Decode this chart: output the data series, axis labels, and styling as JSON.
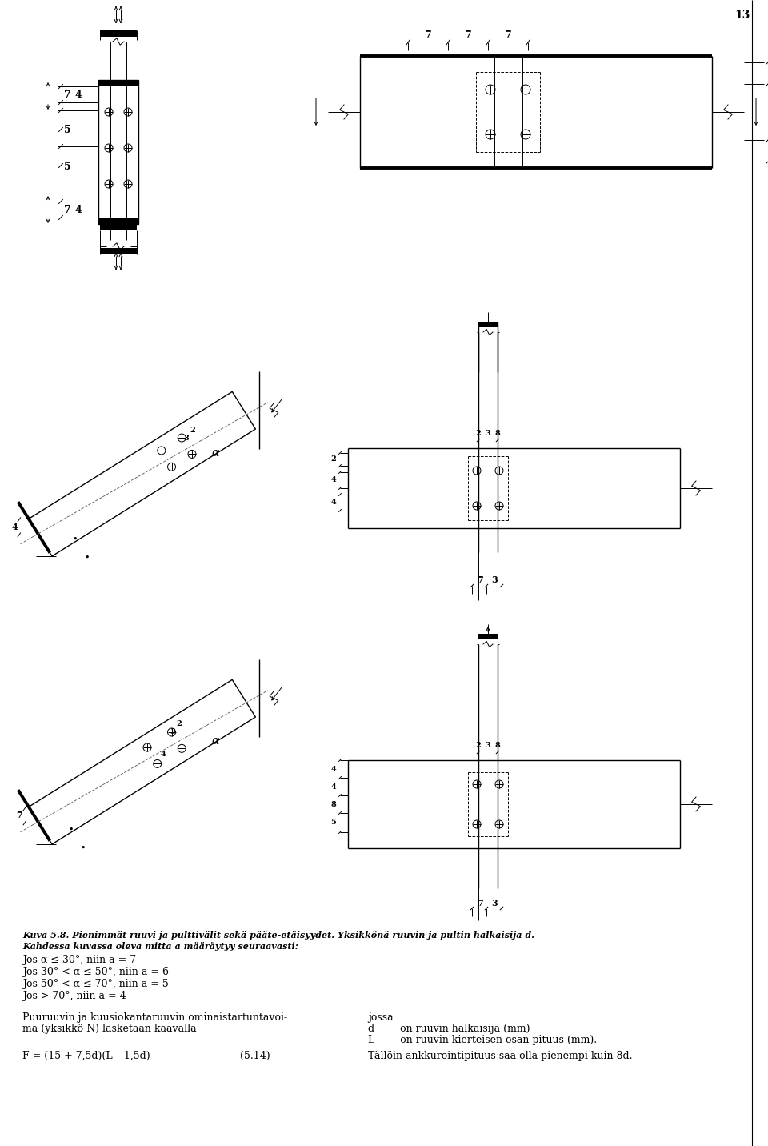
{
  "page_number": "13",
  "background_color": "#ffffff",
  "line_color": "#000000",
  "figure_caption": "Kuva 5.8. Pienimmät ruuvi ja pulttivälit sekä pääte-etäisyydet. Yksikkönä ruuvin ja pultin halkaisija d.",
  "caption_line2": "Kahdessa kuvassa oleva mitta a määräytyy seuraavasti:",
  "conditions": [
    "Jos α ≤ 30°, niin a = 7",
    "Jos 30° < α ≤ 50°, niin a = 6",
    "Jos 50° < α ≤ 70°, niin a = 5",
    "Jos > 70°, niin a = 4"
  ],
  "body_text_left1": "Puuruuvin ja kuusiokantaruuvin ominaistartuntavoi-",
  "body_text_left2": "ma (yksikkö N) lasketaan kaavalla",
  "body_text_right": "jossa",
  "formula": "F = (15 + 7,5d)(L – 1,5d)",
  "formula_number": "(5.14)",
  "formula_desc_d": "d        on ruuvin halkaisija (mm)",
  "formula_desc_L": "L        on ruuvin kierteisen osan pituus (mm).",
  "formula_note": "Tällöin ankkurointipituus saa olla pienempi kuin 8d."
}
